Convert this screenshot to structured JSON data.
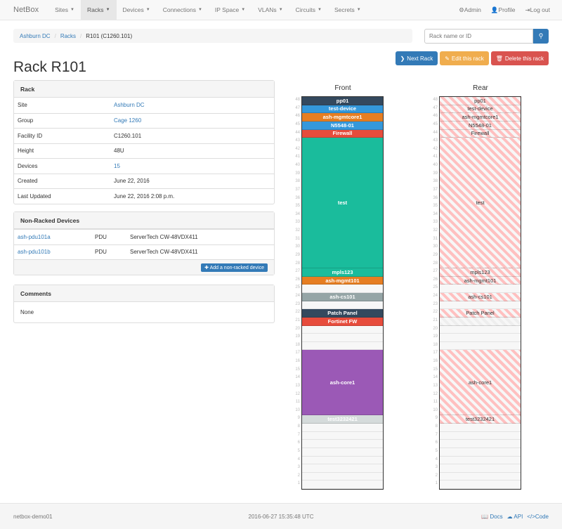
{
  "nav": {
    "brand": "NetBox",
    "items": [
      "Sites",
      "Racks",
      "Devices",
      "Connections",
      "IP Space",
      "VLANs",
      "Circuits",
      "Secrets"
    ],
    "active": "Racks",
    "right": [
      {
        "icon": "gear-icon",
        "label": "Admin"
      },
      {
        "icon": "user-icon",
        "label": "Profile"
      },
      {
        "icon": "logout-icon",
        "label": "Log out"
      }
    ]
  },
  "breadcrumb": [
    "Ashburn DC",
    "Racks",
    "R101 (C1260.101)"
  ],
  "search": {
    "placeholder": "Rack name or ID",
    "value": ""
  },
  "actions": {
    "next": "Next Rack",
    "edit": "Edit this rack",
    "delete": "Delete this rack"
  },
  "title": "Rack R101",
  "rack_panel": {
    "heading": "Rack",
    "rows": [
      {
        "key": "Site",
        "value": "Ashburn DC",
        "link": true
      },
      {
        "key": "Group",
        "value": "Cage 1260",
        "link": true
      },
      {
        "key": "Facility ID",
        "value": "C1260.101",
        "link": false
      },
      {
        "key": "Height",
        "value": "48U",
        "link": false
      },
      {
        "key": "Devices",
        "value": "15",
        "link": true
      },
      {
        "key": "Created",
        "value": "June 22, 2016",
        "link": false
      },
      {
        "key": "Last Updated",
        "value": "June 22, 2016 2:08 p.m.",
        "link": false
      }
    ]
  },
  "nonracked": {
    "heading": "Non-Racked Devices",
    "rows": [
      {
        "name": "ash-pdu101a",
        "role": "PDU",
        "type": "ServerTech CW-48VDX411"
      },
      {
        "name": "ash-pdu101b",
        "role": "PDU",
        "type": "ServerTech CW-48VDX411"
      }
    ],
    "add_label": "Add a non-racked device"
  },
  "comments": {
    "heading": "Comments",
    "body": "None"
  },
  "rack": {
    "front_label": "Front",
    "rear_label": "Rear",
    "height_u": 48,
    "devices": [
      {
        "name": "pp01",
        "top": 48,
        "units": 1,
        "color": "#34495e",
        "rear": true
      },
      {
        "name": "test-device",
        "top": 47,
        "units": 1,
        "color": "#3498db",
        "rear": true
      },
      {
        "name": "ash-mgmtcore1",
        "top": 46,
        "units": 1,
        "color": "#e67e22",
        "rear": true
      },
      {
        "name": "N5548-01",
        "top": 45,
        "units": 1,
        "color": "#3498db",
        "rear": true
      },
      {
        "name": "Firewall",
        "top": 44,
        "units": 1,
        "color": "#e74c3c",
        "rear": true
      },
      {
        "name": "test",
        "top": 43,
        "units": 16,
        "color": "#1abc9c",
        "rear": true
      },
      {
        "name": "mpls123",
        "top": 27,
        "units": 1,
        "color": "#1abc9c",
        "rear": true
      },
      {
        "name": "ash-mgmt101",
        "top": 26,
        "units": 1,
        "color": "#e67e22",
        "rear": true
      },
      {
        "name": "ash-cs101",
        "top": 24,
        "units": 1,
        "color": "#95a5a6",
        "rear": true
      },
      {
        "name": "Patch Panel",
        "top": 22,
        "units": 1,
        "color": "#34495e",
        "rear": true
      },
      {
        "name": "Fortinet FW",
        "top": 21,
        "units": 1,
        "color": "#e74c3c",
        "rear": false
      },
      {
        "name": "ash-core1",
        "top": 17,
        "units": 8,
        "color": "#9b59b6",
        "rear": true
      },
      {
        "name": "test3232421",
        "top": 9,
        "units": 1,
        "color": "#d5dbdb",
        "rear": true
      }
    ]
  },
  "footer": {
    "host": "netbox-demo01",
    "time": "2016-06-27 15:35:48 UTC",
    "links": [
      "Docs",
      "API",
      "Code"
    ]
  }
}
